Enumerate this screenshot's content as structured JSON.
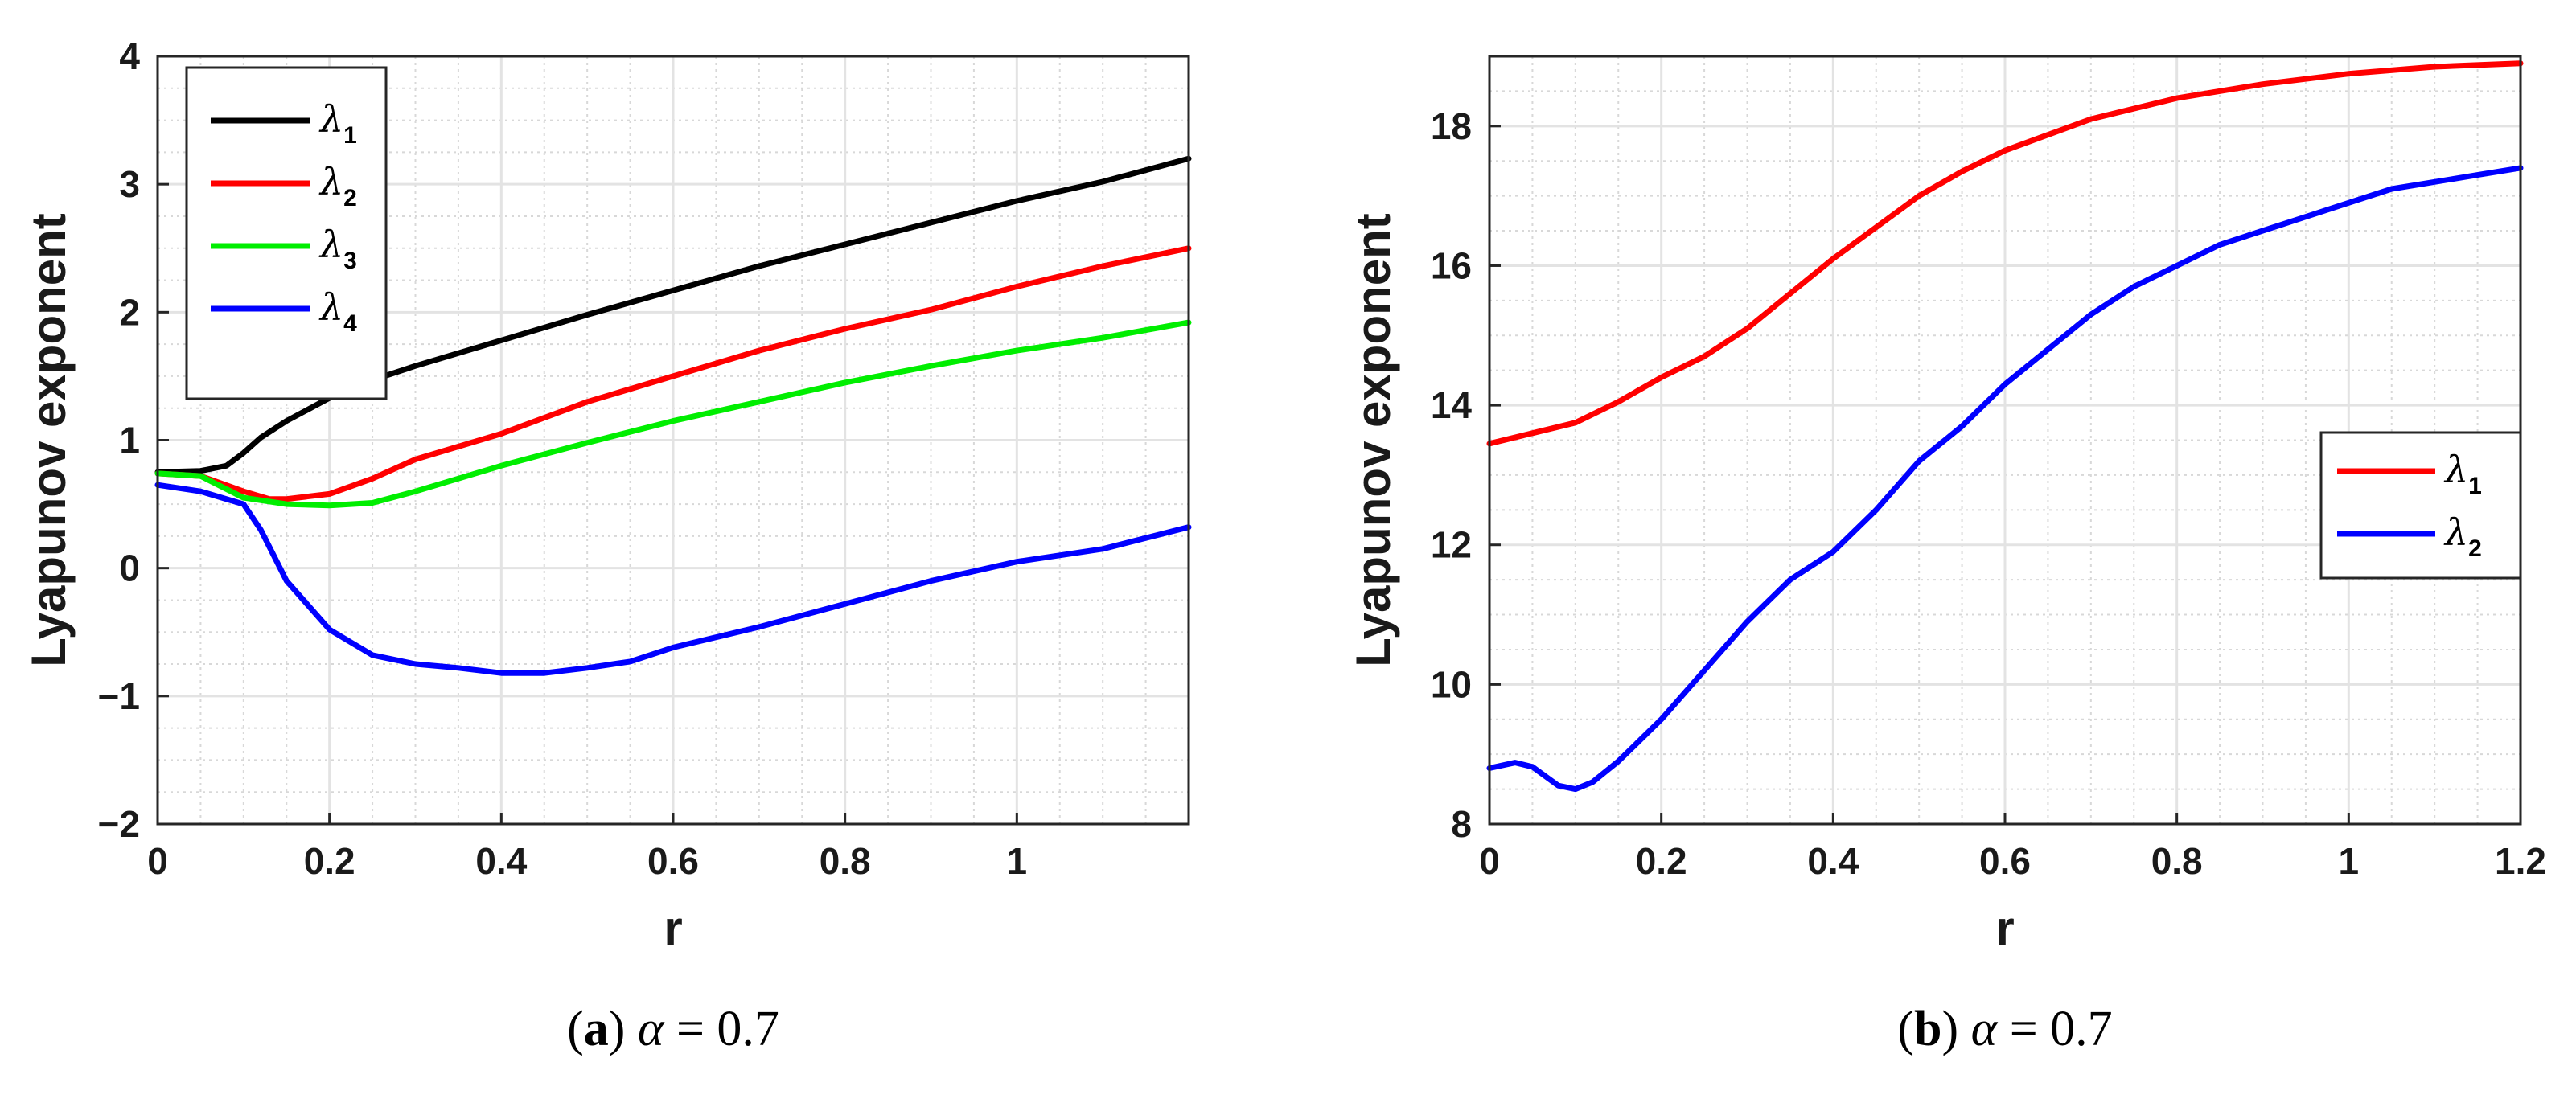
{
  "chart_data": [
    {
      "type": "line",
      "caption": {
        "letter": "a",
        "param_symbol": "α",
        "param_value": "0.7"
      },
      "xlabel": "r",
      "ylabel": "Lyapunov exponent",
      "xlim": [
        0,
        1.2
      ],
      "ylim": [
        -2,
        4
      ],
      "xticks": [
        0,
        0.2,
        0.4,
        0.6,
        0.8,
        1
      ],
      "xtick_labels": [
        "0",
        "0.2",
        "0.4",
        "0.6",
        "0.8",
        "1"
      ],
      "yticks": [
        -2,
        -1,
        0,
        1,
        2,
        3,
        4
      ],
      "ytick_labels": [
        "−2",
        "−1",
        "0",
        "1",
        "2",
        "3",
        "4"
      ],
      "grid": true,
      "legend_position": "top-left",
      "series": [
        {
          "name": "λ",
          "subscript": "1",
          "color": "#000000",
          "x": [
            0,
            0.05,
            0.08,
            0.1,
            0.12,
            0.15,
            0.2,
            0.25,
            0.3,
            0.4,
            0.5,
            0.6,
            0.7,
            0.8,
            0.9,
            1.0,
            1.1,
            1.2
          ],
          "y": [
            0.75,
            0.76,
            0.8,
            0.9,
            1.02,
            1.15,
            1.33,
            1.47,
            1.58,
            1.78,
            1.98,
            2.17,
            2.36,
            2.53,
            2.7,
            2.87,
            3.02,
            3.2
          ]
        },
        {
          "name": "λ",
          "subscript": "2",
          "color": "#ff0000",
          "x": [
            0,
            0.05,
            0.1,
            0.13,
            0.15,
            0.2,
            0.25,
            0.3,
            0.4,
            0.5,
            0.6,
            0.7,
            0.8,
            0.9,
            1.0,
            1.1,
            1.2
          ],
          "y": [
            0.74,
            0.72,
            0.6,
            0.54,
            0.54,
            0.58,
            0.7,
            0.85,
            1.05,
            1.3,
            1.5,
            1.7,
            1.87,
            2.02,
            2.2,
            2.36,
            2.5
          ]
        },
        {
          "name": "λ",
          "subscript": "3",
          "color": "#00ee00",
          "x": [
            0,
            0.05,
            0.1,
            0.15,
            0.2,
            0.25,
            0.3,
            0.4,
            0.5,
            0.6,
            0.7,
            0.8,
            0.9,
            1.0,
            1.1,
            1.2
          ],
          "y": [
            0.74,
            0.72,
            0.55,
            0.5,
            0.49,
            0.51,
            0.6,
            0.8,
            0.98,
            1.15,
            1.3,
            1.45,
            1.58,
            1.7,
            1.8,
            1.92
          ]
        },
        {
          "name": "λ",
          "subscript": "4",
          "color": "#0000ff",
          "x": [
            0,
            0.05,
            0.1,
            0.12,
            0.15,
            0.2,
            0.25,
            0.3,
            0.35,
            0.4,
            0.45,
            0.5,
            0.55,
            0.6,
            0.7,
            0.8,
            0.9,
            1.0,
            1.1,
            1.2
          ],
          "y": [
            0.65,
            0.6,
            0.5,
            0.3,
            -0.1,
            -0.48,
            -0.68,
            -0.75,
            -0.78,
            -0.82,
            -0.82,
            -0.78,
            -0.73,
            -0.62,
            -0.46,
            -0.28,
            -0.1,
            0.05,
            0.15,
            0.32
          ]
        }
      ]
    },
    {
      "type": "line",
      "caption": {
        "letter": "b",
        "param_symbol": "α",
        "param_value": "0.7"
      },
      "xlabel": "r",
      "ylabel": "Lyapunov exponent",
      "xlim": [
        0,
        1.2
      ],
      "ylim": [
        8,
        19
      ],
      "xticks": [
        0,
        0.2,
        0.4,
        0.6,
        0.8,
        1,
        1.2
      ],
      "xtick_labels": [
        "0",
        "0.2",
        "0.4",
        "0.6",
        "0.8",
        "1",
        "1.2"
      ],
      "yticks": [
        8,
        10,
        12,
        14,
        16,
        18
      ],
      "ytick_labels": [
        "8",
        "10",
        "12",
        "14",
        "16",
        "18"
      ],
      "grid": true,
      "legend_position": "center-right",
      "series": [
        {
          "name": "λ",
          "subscript": "1",
          "color": "#ff0000",
          "x": [
            0,
            0.05,
            0.1,
            0.15,
            0.2,
            0.25,
            0.3,
            0.35,
            0.4,
            0.45,
            0.5,
            0.55,
            0.6,
            0.7,
            0.8,
            0.9,
            1.0,
            1.1,
            1.2
          ],
          "y": [
            13.45,
            13.6,
            13.75,
            14.05,
            14.4,
            14.7,
            15.1,
            15.6,
            16.1,
            16.55,
            17.0,
            17.35,
            17.65,
            18.1,
            18.4,
            18.6,
            18.75,
            18.85,
            18.9
          ]
        },
        {
          "name": "λ",
          "subscript": "2",
          "color": "#0000ff",
          "x": [
            0,
            0.03,
            0.05,
            0.08,
            0.1,
            0.12,
            0.15,
            0.2,
            0.25,
            0.3,
            0.35,
            0.4,
            0.45,
            0.5,
            0.55,
            0.6,
            0.65,
            0.7,
            0.75,
            0.8,
            0.85,
            0.9,
            0.95,
            1.0,
            1.05,
            1.1,
            1.15,
            1.2
          ],
          "y": [
            8.8,
            8.88,
            8.82,
            8.55,
            8.5,
            8.6,
            8.9,
            9.5,
            10.2,
            10.9,
            11.5,
            11.9,
            12.5,
            13.2,
            13.7,
            14.3,
            14.8,
            15.3,
            15.7,
            16.0,
            16.3,
            16.5,
            16.7,
            16.9,
            17.1,
            17.2,
            17.3,
            17.4
          ]
        }
      ]
    }
  ]
}
